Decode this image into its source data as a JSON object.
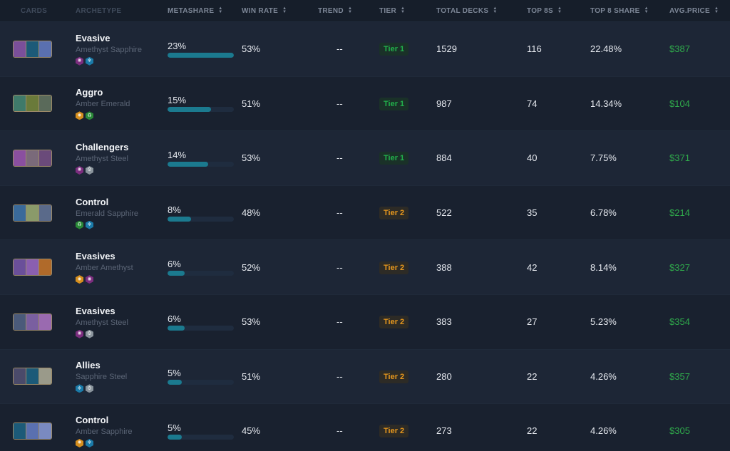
{
  "columns": {
    "cards": "CARDS",
    "archetype": "ARCHETYPE",
    "metashare": "METASHARE",
    "win_rate": "WIN RATE",
    "trend": "TREND",
    "tier": "TIER",
    "total_decks": "TOTAL DECKS",
    "top8s": "TOP 8S",
    "top8_share": "TOP 8 SHARE",
    "avg_price": "AVG.PRICE"
  },
  "colors": {
    "amethyst": "#7b2d7e",
    "sapphire": "#1a7aa8",
    "amber": "#d68f1e",
    "emerald": "#2a8a38",
    "steel": "#8a949c",
    "tier1": "#22b24c",
    "tier2": "#e8981d",
    "price": "#2fa94b",
    "bar": "#1b7a8f"
  },
  "rows": [
    {
      "name": "Evasive",
      "inks_label": "Amethyst Sapphire",
      "inks": [
        "amethyst",
        "sapphire"
      ],
      "metashare": "23%",
      "metashare_pct": 100,
      "win_rate": "53%",
      "trend": "--",
      "tier": "Tier 1",
      "tier_level": 1,
      "total_decks": "1529",
      "top8s": "116",
      "top8_share": "22.48%",
      "avg_price": "$387",
      "card_colors": [
        "#7a4f9a",
        "#1c5a78",
        "#5a70b0"
      ]
    },
    {
      "name": "Aggro",
      "inks_label": "Amber Emerald",
      "inks": [
        "amber",
        "emerald"
      ],
      "metashare": "15%",
      "metashare_pct": 66,
      "win_rate": "51%",
      "trend": "--",
      "tier": "Tier 1",
      "tier_level": 1,
      "total_decks": "987",
      "top8s": "74",
      "top8_share": "14.34%",
      "avg_price": "$104",
      "card_colors": [
        "#3f7a6a",
        "#6a7a3a",
        "#5a6a5a"
      ]
    },
    {
      "name": "Challengers",
      "inks_label": "Amethyst Steel",
      "inks": [
        "amethyst",
        "steel"
      ],
      "metashare": "14%",
      "metashare_pct": 61,
      "win_rate": "53%",
      "trend": "--",
      "tier": "Tier 1",
      "tier_level": 1,
      "total_decks": "884",
      "top8s": "40",
      "top8_share": "7.75%",
      "avg_price": "$371",
      "card_colors": [
        "#8a4fa0",
        "#7a6a7a",
        "#6a4a7a"
      ]
    },
    {
      "name": "Control",
      "inks_label": "Emerald Sapphire",
      "inks": [
        "emerald",
        "sapphire"
      ],
      "metashare": "8%",
      "metashare_pct": 35,
      "win_rate": "48%",
      "trend": "--",
      "tier": "Tier 2",
      "tier_level": 2,
      "total_decks": "522",
      "top8s": "35",
      "top8_share": "6.78%",
      "avg_price": "$214",
      "card_colors": [
        "#3a6a9a",
        "#8a9a6a",
        "#5a6a8a"
      ]
    },
    {
      "name": "Evasives",
      "inks_label": "Amber Amethyst",
      "inks": [
        "amber",
        "amethyst"
      ],
      "metashare": "6%",
      "metashare_pct": 26,
      "win_rate": "52%",
      "trend": "--",
      "tier": "Tier 2",
      "tier_level": 2,
      "total_decks": "388",
      "top8s": "42",
      "top8_share": "8.14%",
      "avg_price": "$327",
      "card_colors": [
        "#6a4f9a",
        "#8a5fb0",
        "#b06a2a"
      ]
    },
    {
      "name": "Evasives",
      "inks_label": "Amethyst Steel",
      "inks": [
        "amethyst",
        "steel"
      ],
      "metashare": "6%",
      "metashare_pct": 26,
      "win_rate": "53%",
      "trend": "--",
      "tier": "Tier 2",
      "tier_level": 2,
      "total_decks": "383",
      "top8s": "27",
      "top8_share": "5.23%",
      "avg_price": "$354",
      "card_colors": [
        "#4a5a7a",
        "#7a5fa0",
        "#9a6ab0"
      ]
    },
    {
      "name": "Allies",
      "inks_label": "Sapphire Steel",
      "inks": [
        "sapphire",
        "steel"
      ],
      "metashare": "5%",
      "metashare_pct": 22,
      "win_rate": "51%",
      "trend": "--",
      "tier": "Tier 2",
      "tier_level": 2,
      "total_decks": "280",
      "top8s": "22",
      "top8_share": "4.26%",
      "avg_price": "$357",
      "card_colors": [
        "#4a4a6a",
        "#1c5a78",
        "#9a9a8a"
      ]
    },
    {
      "name": "Control",
      "inks_label": "Amber Sapphire",
      "inks": [
        "amber",
        "sapphire"
      ],
      "metashare": "5%",
      "metashare_pct": 22,
      "win_rate": "45%",
      "trend": "--",
      "tier": "Tier 2",
      "tier_level": 2,
      "total_decks": "273",
      "top8s": "22",
      "top8_share": "4.26%",
      "avg_price": "$305",
      "card_colors": [
        "#1c5a78",
        "#5a70b0",
        "#7a8ac0"
      ]
    }
  ]
}
